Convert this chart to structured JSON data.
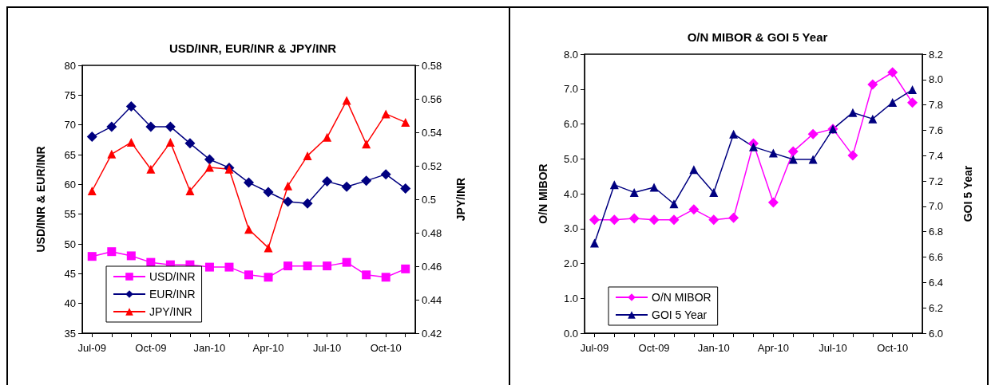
{
  "chart_data": [
    {
      "type": "line",
      "title": "USD/INR, EUR/INR & JPY/INR",
      "ylabel": "USD/INR & EUR/INR",
      "y2label": "JPY/INR",
      "categories": [
        "Jul-09",
        null,
        null,
        "Oct-09",
        null,
        null,
        "Jan-10",
        null,
        null,
        "Apr-10",
        null,
        null,
        "Jul-10",
        null,
        null,
        "Oct-10",
        null
      ],
      "series": [
        {
          "name": "USD/INR",
          "color": "#ff00ff",
          "marker": "square",
          "values": [
            47.9,
            48.7,
            48.0,
            46.9,
            46.5,
            46.5,
            46.1,
            46.1,
            44.8,
            44.4,
            46.3,
            46.3,
            46.3,
            46.9,
            44.8,
            44.4,
            45.8
          ]
        },
        {
          "name": "EUR/INR",
          "color": "#000080",
          "marker": "diamond",
          "values": [
            68.0,
            69.7,
            73.1,
            69.7,
            69.7,
            66.9,
            64.2,
            62.8,
            60.3,
            58.7,
            57.1,
            56.8,
            60.5,
            59.6,
            60.6,
            61.7,
            59.3
          ]
        },
        {
          "name": "JPY/INR",
          "color": "#ff0000",
          "marker": "triangle",
          "axis": "y2",
          "values": [
            0.505,
            0.527,
            0.534,
            0.518,
            0.534,
            0.505,
            0.519,
            0.518,
            0.482,
            0.471,
            0.508,
            0.526,
            0.537,
            0.559,
            0.533,
            0.551,
            0.546
          ]
        }
      ],
      "ylim": [
        35,
        80
      ],
      "yticks": [
        35,
        40,
        45,
        50,
        55,
        60,
        65,
        70,
        75,
        80
      ],
      "y2lim": [
        0.42,
        0.58
      ],
      "y2ticks": [
        0.42,
        0.44,
        0.46,
        0.48,
        0.5,
        0.52,
        0.54,
        0.56,
        0.58
      ],
      "grid": false,
      "legend": "bottom left",
      "line_style": "solid"
    },
    {
      "type": "line",
      "title": "O/N MIBOR & GOI 5 Year",
      "ylabel": "O/N MIBOR",
      "y2label": "GOI 5 Year",
      "categories": [
        "Jul-09",
        null,
        null,
        "Oct-09",
        null,
        null,
        "Jan-10",
        null,
        null,
        "Apr-10",
        null,
        null,
        "Jul-10",
        null,
        null,
        "Oct-10",
        null
      ],
      "series": [
        {
          "name": "O/N MIBOR",
          "color": "#ff00ff",
          "marker": "diamond",
          "values": [
            3.25,
            3.25,
            3.29,
            3.25,
            3.25,
            3.55,
            3.25,
            3.31,
            5.44,
            3.75,
            5.21,
            5.71,
            5.86,
            5.1,
            7.13,
            7.48,
            6.61
          ]
        },
        {
          "name": "GOI 5 Year",
          "color": "#000080",
          "marker": "triangle",
          "axis": "y2",
          "values": [
            6.71,
            7.17,
            7.11,
            7.15,
            7.02,
            7.29,
            7.11,
            7.57,
            7.47,
            7.42,
            7.37,
            7.37,
            7.61,
            7.74,
            7.69,
            7.82,
            7.92
          ]
        }
      ],
      "ylim": [
        0,
        8
      ],
      "yticks": [
        {
          "value": 0,
          "label": "0.0"
        },
        {
          "value": 1,
          "label": "1.0"
        },
        {
          "value": 2,
          "label": "2.0"
        },
        {
          "value": 3,
          "label": "3.0"
        },
        {
          "value": 4,
          "label": "4.0"
        },
        {
          "value": 5,
          "label": "5.0"
        },
        {
          "value": 6,
          "label": "6.0"
        },
        {
          "value": 7,
          "label": "7.0"
        },
        {
          "value": 8,
          "label": "8.0"
        }
      ],
      "y2lim": [
        6.0,
        8.2
      ],
      "y2ticks": [
        {
          "value": 6.0,
          "label": "6.0"
        },
        {
          "value": 6.2,
          "label": "6.2"
        },
        {
          "value": 6.4,
          "label": "6.4"
        },
        {
          "value": 6.6,
          "label": "6.6"
        },
        {
          "value": 6.8,
          "label": "6.8"
        },
        {
          "value": 7.0,
          "label": "7.0"
        },
        {
          "value": 7.2,
          "label": "7.2"
        },
        {
          "value": 7.4,
          "label": "7.4"
        },
        {
          "value": 7.6,
          "label": "7.6"
        },
        {
          "value": 7.8,
          "label": "7.8"
        },
        {
          "value": 8.0,
          "label": "8.0"
        },
        {
          "value": 8.2,
          "label": "8.2"
        }
      ],
      "grid": false,
      "legend": "bottom left",
      "line_style": "solid"
    }
  ]
}
